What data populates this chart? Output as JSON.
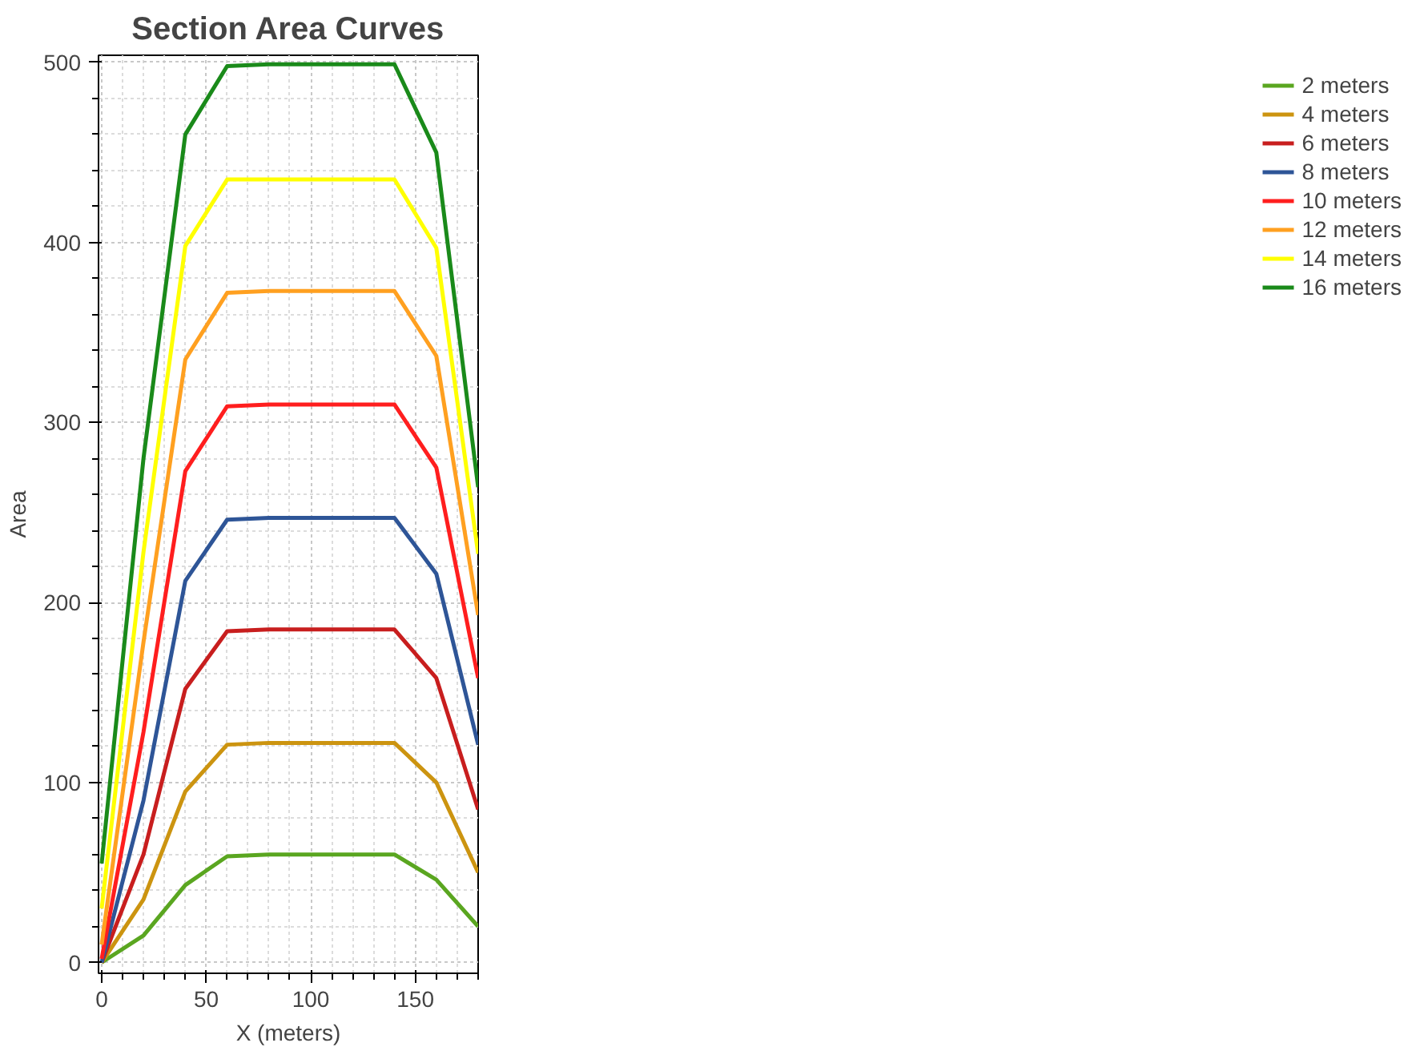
{
  "chart_data": {
    "type": "line",
    "title": "Section Area Curves",
    "xlabel": "X (meters)",
    "ylabel": "Area",
    "x": [
      0,
      20,
      40,
      60,
      80,
      100,
      120,
      140,
      160,
      180
    ],
    "xlim": [
      -1.5,
      180
    ],
    "xticks": [
      0,
      50,
      100,
      150
    ],
    "ylim": [
      -6,
      504
    ],
    "yticks": [
      0,
      100,
      200,
      300,
      400,
      500
    ],
    "grid": true,
    "legend": "right",
    "line_style": "solid",
    "series": [
      {
        "name": "2 meters",
        "color": "#5aa620",
        "values": [
          0,
          15,
          43,
          59,
          60,
          60,
          60,
          60,
          46,
          20
        ]
      },
      {
        "name": "4 meters",
        "color": "#cc9410",
        "values": [
          0,
          35,
          95,
          121,
          122,
          122,
          122,
          122,
          100,
          50
        ]
      },
      {
        "name": "6 meters",
        "color": "#c81e1e",
        "values": [
          0,
          60,
          152,
          184,
          185,
          185,
          185,
          185,
          158,
          85
        ]
      },
      {
        "name": "8 meters",
        "color": "#2e5597",
        "values": [
          0,
          90,
          212,
          246,
          247,
          247,
          247,
          247,
          216,
          121
        ]
      },
      {
        "name": "10 meters",
        "color": "#ff1e1e",
        "values": [
          2,
          128,
          273,
          309,
          310,
          310,
          310,
          310,
          275,
          158
        ]
      },
      {
        "name": "12 meters",
        "color": "#ffa020",
        "values": [
          10,
          178,
          335,
          372,
          373,
          373,
          373,
          373,
          337,
          193
        ]
      },
      {
        "name": "14 meters",
        "color": "#ffff00",
        "values": [
          30,
          228,
          398,
          435,
          435,
          435,
          435,
          435,
          397,
          227
        ]
      },
      {
        "name": "16 meters",
        "color": "#1a8a1a",
        "values": [
          55,
          280,
          460,
          498,
          499,
          499,
          499,
          499,
          450,
          264
        ]
      }
    ]
  }
}
